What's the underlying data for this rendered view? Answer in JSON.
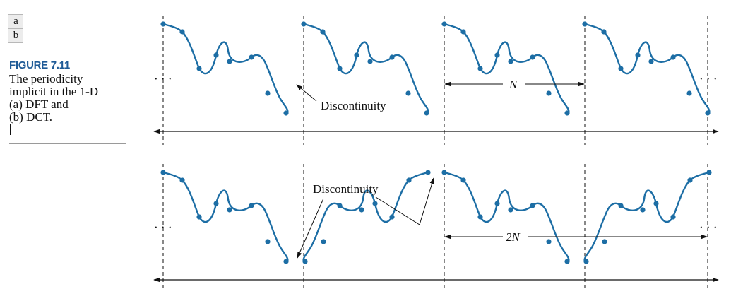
{
  "panel_letters": [
    "a",
    "b"
  ],
  "figure": {
    "title": "FIGURE 7.11",
    "caption_lines": [
      "The periodicity",
      "implicit in the 1-D",
      "(a) DFT and",
      "(b) DCT."
    ]
  },
  "panel_a": {
    "ellipsis": "· · ·",
    "discontinuity_label": "Discontinuity",
    "period_label": "N"
  },
  "panel_b": {
    "ellipsis": "· · ·",
    "discontinuity_label": "Discontinuity",
    "period_label": "2N"
  },
  "colors": {
    "curve": "#1d6ea5",
    "point": "#1d6ea5",
    "ink": "#111111"
  }
}
